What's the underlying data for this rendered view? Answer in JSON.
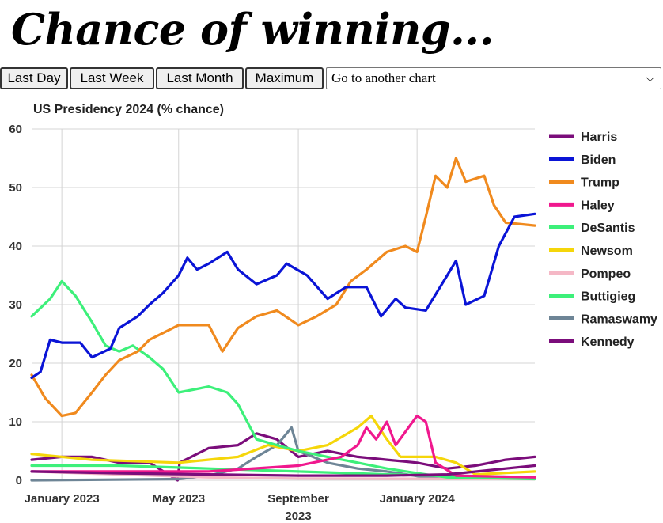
{
  "page": {
    "title": "Chance of winning..."
  },
  "toolbar": {
    "buttons": [
      "Last Day",
      "Last Week",
      "Last Month",
      "Maximum"
    ],
    "select_value": "Go to another chart"
  },
  "chart_data": {
    "type": "line",
    "title": "US Presidency 2024 (% chance)",
    "xlabel": "",
    "ylabel": "",
    "ylim": [
      0,
      60
    ],
    "yticks": [
      0,
      10,
      20,
      30,
      40,
      50,
      60
    ],
    "xlim": [
      "2022-12-01",
      "2024-05-01"
    ],
    "xticks": [
      {
        "date": "2023-01-01",
        "label": "January 2023"
      },
      {
        "date": "2023-05-01",
        "label": "May 2023"
      },
      {
        "date": "2023-09-01",
        "label": "September 2023"
      },
      {
        "date": "2024-01-01",
        "label": "January 2024"
      }
    ],
    "grid": true,
    "legend_position": "right",
    "series": [
      {
        "name": "Harris",
        "color": "#7b0d7b",
        "points": [
          [
            "2022-12-01",
            1.5
          ],
          [
            "2023-03-01",
            1.2
          ],
          [
            "2023-06-01",
            1.0
          ],
          [
            "2023-09-01",
            0.8
          ],
          [
            "2023-12-01",
            0.8
          ],
          [
            "2024-02-01",
            1.0
          ],
          [
            "2024-04-01",
            2.0
          ],
          [
            "2024-05-01",
            2.5
          ]
        ]
      },
      {
        "name": "Biden",
        "color": "#0a14d6",
        "points": [
          [
            "2022-12-01",
            17.5
          ],
          [
            "2022-12-10",
            18.5
          ],
          [
            "2022-12-20",
            24
          ],
          [
            "2023-01-01",
            23.5
          ],
          [
            "2023-01-20",
            23.5
          ],
          [
            "2023-02-01",
            21
          ],
          [
            "2023-02-20",
            22.5
          ],
          [
            "2023-03-01",
            26
          ],
          [
            "2023-03-20",
            28
          ],
          [
            "2023-04-01",
            30
          ],
          [
            "2023-04-15",
            32
          ],
          [
            "2023-05-01",
            35
          ],
          [
            "2023-05-10",
            38
          ],
          [
            "2023-05-20",
            36
          ],
          [
            "2023-06-01",
            37
          ],
          [
            "2023-06-20",
            39
          ],
          [
            "2023-07-01",
            36
          ],
          [
            "2023-07-20",
            33.5
          ],
          [
            "2023-08-10",
            35
          ],
          [
            "2023-08-20",
            37
          ],
          [
            "2023-09-10",
            35
          ],
          [
            "2023-10-01",
            31
          ],
          [
            "2023-10-20",
            33
          ],
          [
            "2023-11-10",
            33
          ],
          [
            "2023-11-25",
            28
          ],
          [
            "2023-12-10",
            31
          ],
          [
            "2023-12-20",
            29.5
          ],
          [
            "2024-01-10",
            29
          ],
          [
            "2024-02-01",
            35
          ],
          [
            "2024-02-10",
            37.5
          ],
          [
            "2024-02-20",
            30
          ],
          [
            "2024-03-10",
            31.5
          ],
          [
            "2024-03-25",
            40
          ],
          [
            "2024-04-10",
            45
          ],
          [
            "2024-05-01",
            45.5
          ]
        ]
      },
      {
        "name": "Trump",
        "color": "#f08a1e",
        "points": [
          [
            "2022-12-01",
            18
          ],
          [
            "2022-12-15",
            14
          ],
          [
            "2023-01-01",
            11
          ],
          [
            "2023-01-15",
            11.5
          ],
          [
            "2023-02-01",
            15
          ],
          [
            "2023-02-15",
            18
          ],
          [
            "2023-03-01",
            20.5
          ],
          [
            "2023-03-20",
            22
          ],
          [
            "2023-04-01",
            24
          ],
          [
            "2023-05-01",
            26.5
          ],
          [
            "2023-06-01",
            26.5
          ],
          [
            "2023-06-15",
            22
          ],
          [
            "2023-07-01",
            26
          ],
          [
            "2023-07-20",
            28
          ],
          [
            "2023-08-10",
            29
          ],
          [
            "2023-09-01",
            26.5
          ],
          [
            "2023-09-20",
            28
          ],
          [
            "2023-10-10",
            30
          ],
          [
            "2023-10-25",
            34
          ],
          [
            "2023-11-10",
            36
          ],
          [
            "2023-12-01",
            39
          ],
          [
            "2023-12-20",
            40
          ],
          [
            "2024-01-01",
            39
          ],
          [
            "2024-01-10",
            45
          ],
          [
            "2024-01-20",
            52
          ],
          [
            "2024-02-01",
            50
          ],
          [
            "2024-02-10",
            55
          ],
          [
            "2024-02-20",
            51
          ],
          [
            "2024-03-10",
            52
          ],
          [
            "2024-03-20",
            47
          ],
          [
            "2024-04-01",
            44
          ],
          [
            "2024-05-01",
            43.5
          ]
        ]
      },
      {
        "name": "Haley",
        "color": "#f0188e",
        "points": [
          [
            "2022-12-01",
            1.5
          ],
          [
            "2023-06-01",
            1.5
          ],
          [
            "2023-09-01",
            2.5
          ],
          [
            "2023-10-15",
            4
          ],
          [
            "2023-11-01",
            6
          ],
          [
            "2023-11-10",
            9
          ],
          [
            "2023-11-20",
            7
          ],
          [
            "2023-12-01",
            10
          ],
          [
            "2023-12-10",
            6
          ],
          [
            "2024-01-01",
            11
          ],
          [
            "2024-01-10",
            10
          ],
          [
            "2024-01-20",
            3
          ],
          [
            "2024-02-10",
            0.8
          ],
          [
            "2024-05-01",
            0.5
          ]
        ]
      },
      {
        "name": "DeSantis",
        "color": "#3df07a",
        "points": [
          [
            "2022-12-01",
            28
          ],
          [
            "2022-12-20",
            31
          ],
          [
            "2023-01-01",
            34
          ],
          [
            "2023-01-15",
            31.5
          ],
          [
            "2023-02-01",
            27
          ],
          [
            "2023-02-15",
            23
          ],
          [
            "2023-03-01",
            22
          ],
          [
            "2023-03-15",
            23
          ],
          [
            "2023-04-01",
            21
          ],
          [
            "2023-04-15",
            19
          ],
          [
            "2023-05-01",
            15
          ],
          [
            "2023-06-01",
            16
          ],
          [
            "2023-06-20",
            15
          ],
          [
            "2023-07-01",
            13
          ],
          [
            "2023-07-20",
            7
          ],
          [
            "2023-08-10",
            6
          ],
          [
            "2023-09-01",
            5
          ],
          [
            "2023-10-01",
            4
          ],
          [
            "2023-11-01",
            3
          ],
          [
            "2023-12-01",
            2
          ],
          [
            "2024-01-10",
            1
          ],
          [
            "2024-02-01",
            0.5
          ],
          [
            "2024-05-01",
            0.2
          ]
        ]
      },
      {
        "name": "Newsom",
        "color": "#f5d60a",
        "points": [
          [
            "2022-12-01",
            4.5
          ],
          [
            "2023-02-01",
            3.5
          ],
          [
            "2023-05-01",
            3
          ],
          [
            "2023-07-01",
            4
          ],
          [
            "2023-08-01",
            6
          ],
          [
            "2023-09-01",
            5
          ],
          [
            "2023-10-01",
            6
          ],
          [
            "2023-11-01",
            9
          ],
          [
            "2023-11-15",
            11
          ],
          [
            "2023-12-01",
            7
          ],
          [
            "2023-12-15",
            4
          ],
          [
            "2024-01-20",
            4
          ],
          [
            "2024-02-10",
            3
          ],
          [
            "2024-03-01",
            1
          ],
          [
            "2024-05-01",
            1.5
          ]
        ]
      },
      {
        "name": "Pompeo",
        "color": "#f5b8c6",
        "points": [
          [
            "2022-12-01",
            1.5
          ],
          [
            "2023-03-01",
            1
          ],
          [
            "2023-06-01",
            0.5
          ],
          [
            "2023-09-01",
            0.3
          ],
          [
            "2024-05-01",
            0.2
          ]
        ]
      },
      {
        "name": "Buttigieg",
        "color": "#3df07a",
        "points": [
          [
            "2022-12-01",
            2.5
          ],
          [
            "2023-03-01",
            2.5
          ],
          [
            "2023-06-01",
            2
          ],
          [
            "2023-09-01",
            1.5
          ],
          [
            "2023-12-01",
            1
          ],
          [
            "2024-05-01",
            0.5
          ]
        ]
      },
      {
        "name": "Ramaswamy",
        "color": "#6e8596",
        "points": [
          [
            "2022-12-01",
            0
          ],
          [
            "2023-05-01",
            0.2
          ],
          [
            "2023-06-01",
            0.8
          ],
          [
            "2023-07-01",
            2
          ],
          [
            "2023-07-20",
            4
          ],
          [
            "2023-08-10",
            6
          ],
          [
            "2023-08-25",
            9
          ],
          [
            "2023-09-01",
            5
          ],
          [
            "2023-10-01",
            3
          ],
          [
            "2023-11-01",
            2
          ],
          [
            "2023-12-01",
            1.5
          ],
          [
            "2024-01-10",
            0.5
          ],
          [
            "2024-05-01",
            0.3
          ]
        ]
      },
      {
        "name": "Kennedy",
        "color": "#7b0d7b",
        "points": [
          [
            "2022-12-01",
            3.5
          ],
          [
            "2023-01-01",
            4
          ],
          [
            "2023-02-01",
            4
          ],
          [
            "2023-03-01",
            3
          ],
          [
            "2023-04-01",
            3
          ],
          [
            "2023-04-30",
            0
          ],
          [
            "2023-05-02",
            3
          ],
          [
            "2023-06-01",
            5.5
          ],
          [
            "2023-07-01",
            6
          ],
          [
            "2023-07-20",
            8
          ],
          [
            "2023-08-10",
            7
          ],
          [
            "2023-09-01",
            4
          ],
          [
            "2023-10-01",
            5
          ],
          [
            "2023-11-01",
            4
          ],
          [
            "2023-12-01",
            3.5
          ],
          [
            "2024-01-01",
            3
          ],
          [
            "2024-02-01",
            2
          ],
          [
            "2024-03-01",
            2.5
          ],
          [
            "2024-04-01",
            3.5
          ],
          [
            "2024-05-01",
            4
          ]
        ]
      }
    ]
  }
}
